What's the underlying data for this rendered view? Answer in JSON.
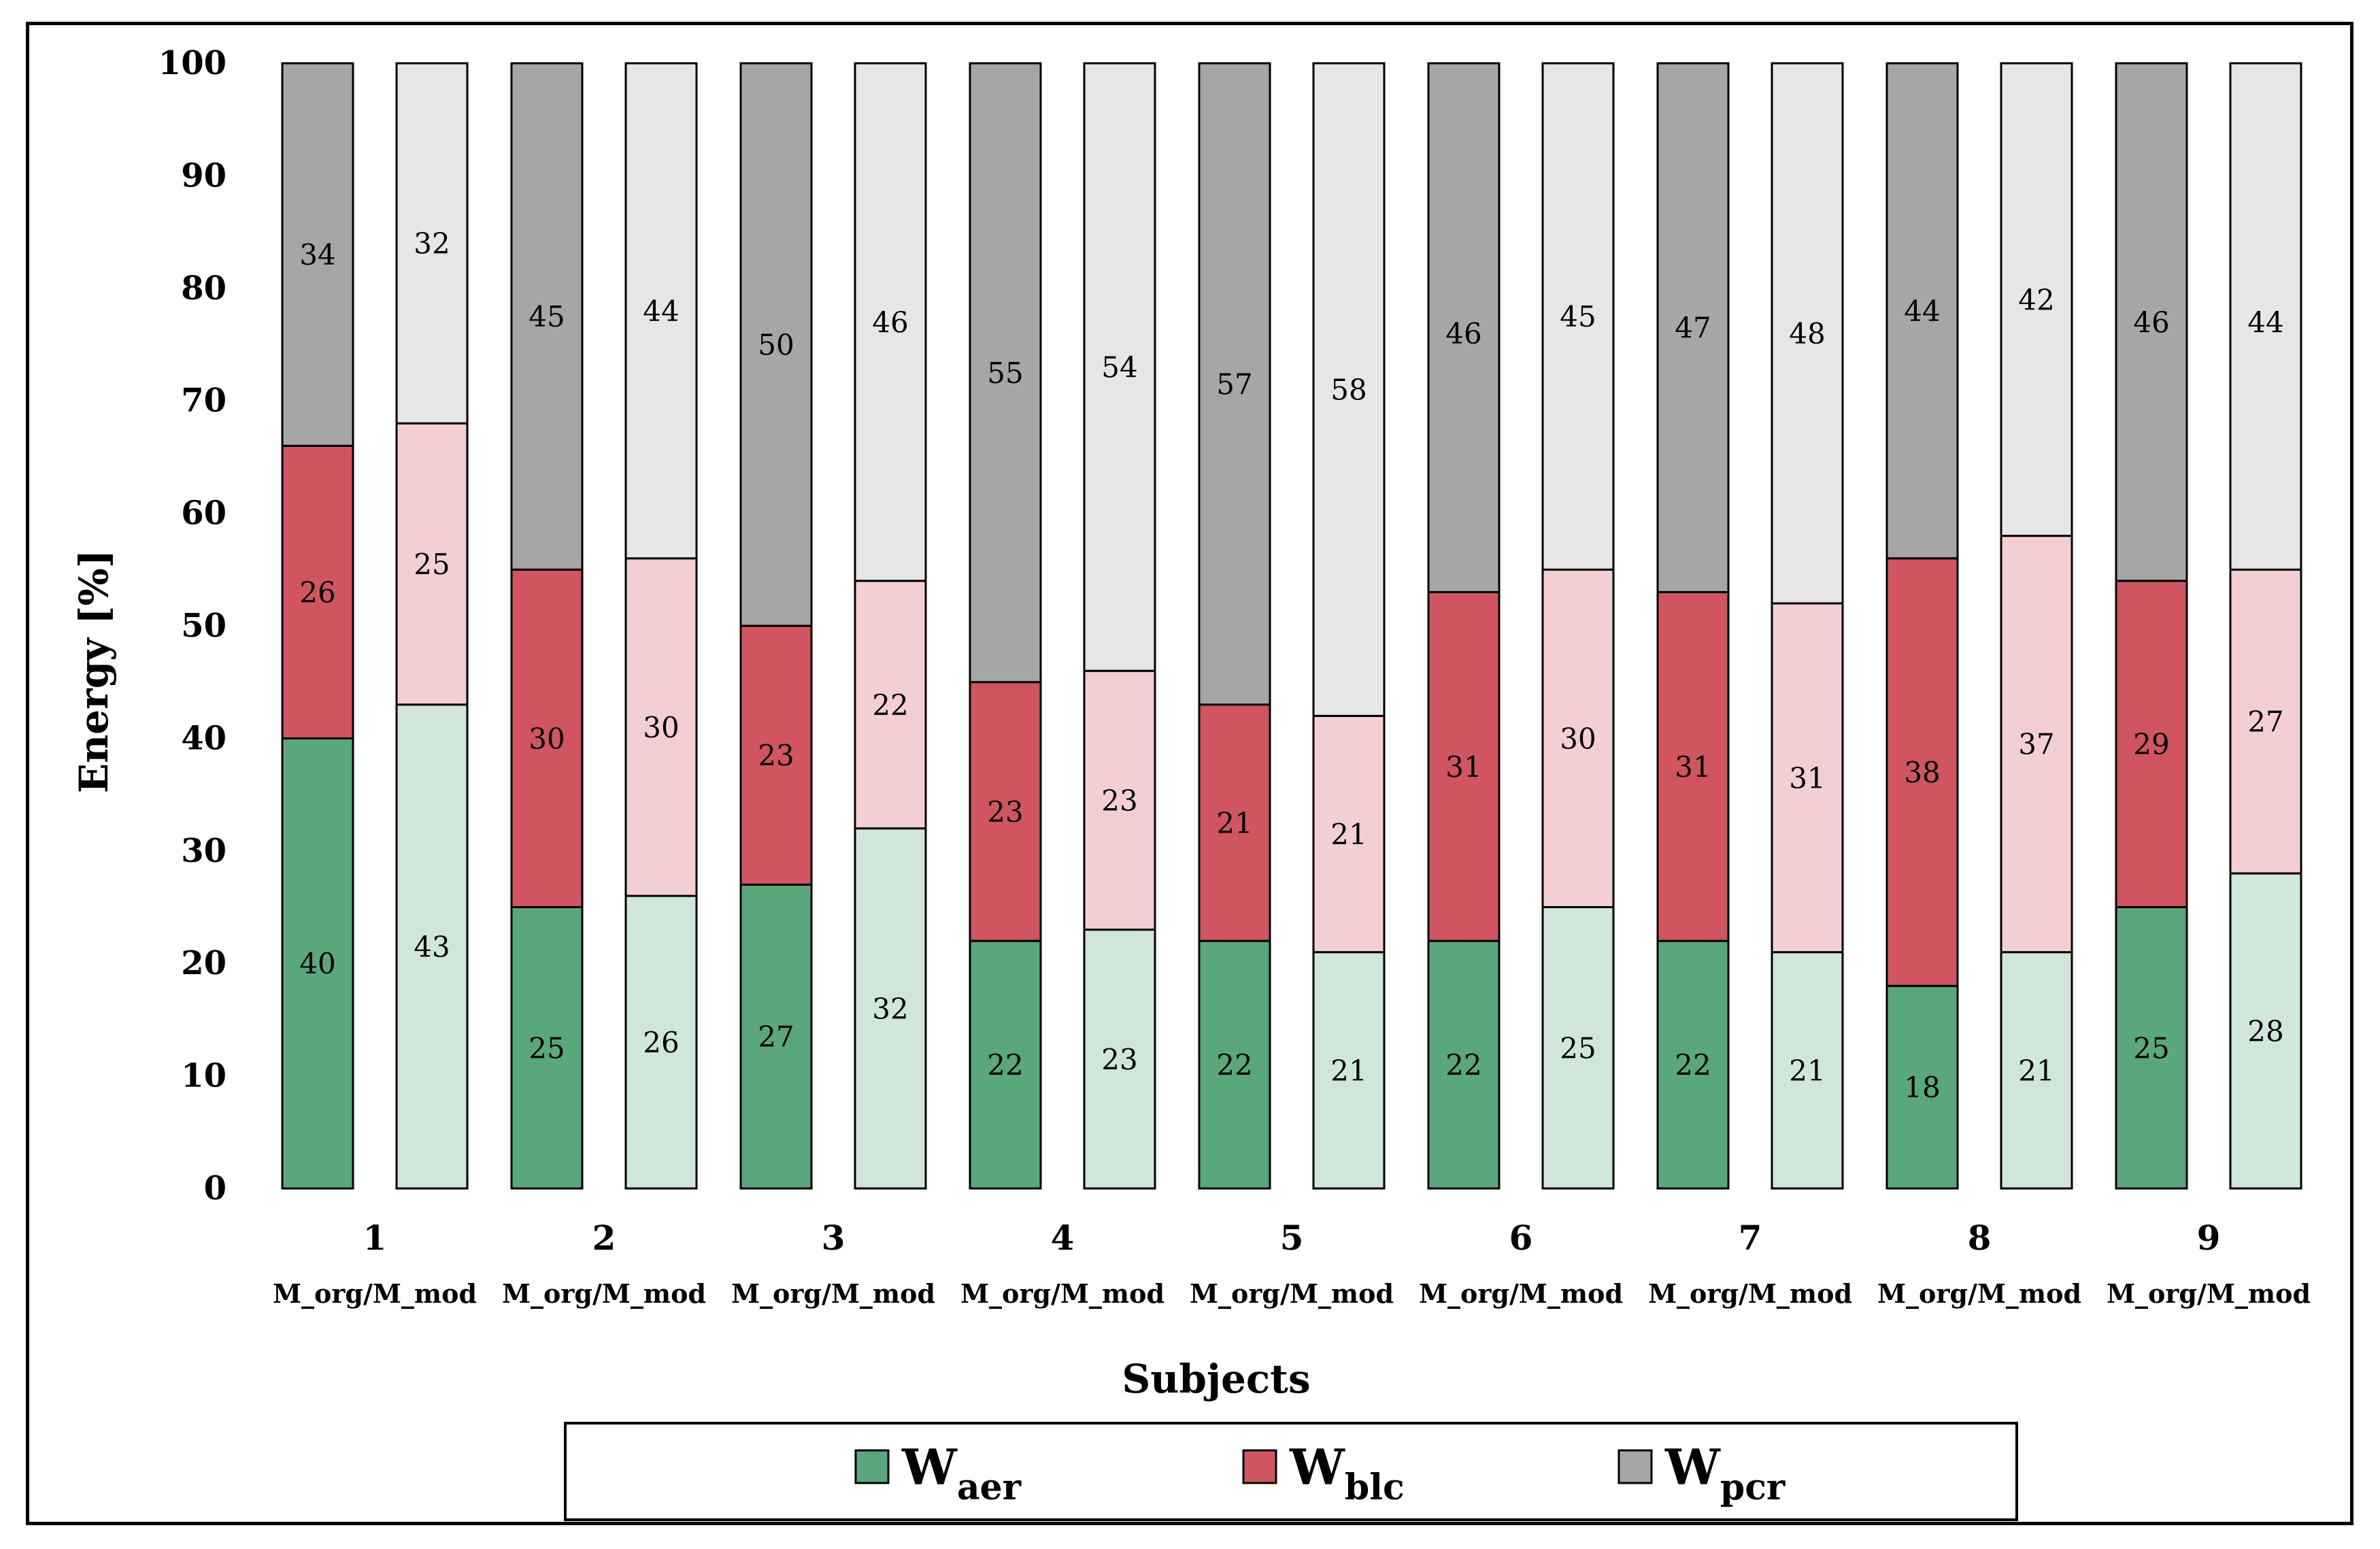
{
  "chart_data": {
    "type": "bar",
    "stacked": true,
    "title": "",
    "xlabel": "Subjects",
    "ylabel": "Energy [%]",
    "ylim": [
      0,
      100
    ],
    "yticks": [
      "0",
      "10",
      "20",
      "30",
      "40",
      "50",
      "60",
      "70",
      "80",
      "90",
      "100"
    ],
    "grid": false,
    "legend_position": "bottom",
    "categories": [
      "1",
      "2",
      "3",
      "4",
      "5",
      "6",
      "7",
      "8",
      "9"
    ],
    "group_label": "M_org/M_mod",
    "models": [
      "M_org",
      "M_mod"
    ],
    "series": [
      {
        "name": "W_aer",
        "legend_main": "W",
        "legend_sub": "aer",
        "color_org": "#5aa77c",
        "color_mod": "#d1e6db",
        "values_org": [
          40,
          25,
          27,
          22,
          22,
          22,
          22,
          18,
          25
        ],
        "values_mod": [
          43,
          26,
          32,
          23,
          21,
          25,
          21,
          21,
          28
        ]
      },
      {
        "name": "W_blc",
        "legend_main": "W",
        "legend_sub": "blc",
        "color_org": "#d15561",
        "color_mod": "#f3cfd4",
        "values_org": [
          26,
          30,
          23,
          23,
          21,
          31,
          31,
          38,
          29
        ],
        "values_mod": [
          25,
          30,
          22,
          23,
          21,
          30,
          31,
          37,
          27
        ]
      },
      {
        "name": "W_pcr",
        "legend_main": "W",
        "legend_sub": "pcr",
        "color_org": "#a6a6a6",
        "color_mod": "#e6e6e6",
        "values_org": [
          34,
          45,
          50,
          55,
          57,
          46,
          47,
          44,
          46
        ],
        "values_mod": [
          32,
          44,
          46,
          54,
          58,
          45,
          48,
          42,
          44
        ]
      }
    ]
  }
}
